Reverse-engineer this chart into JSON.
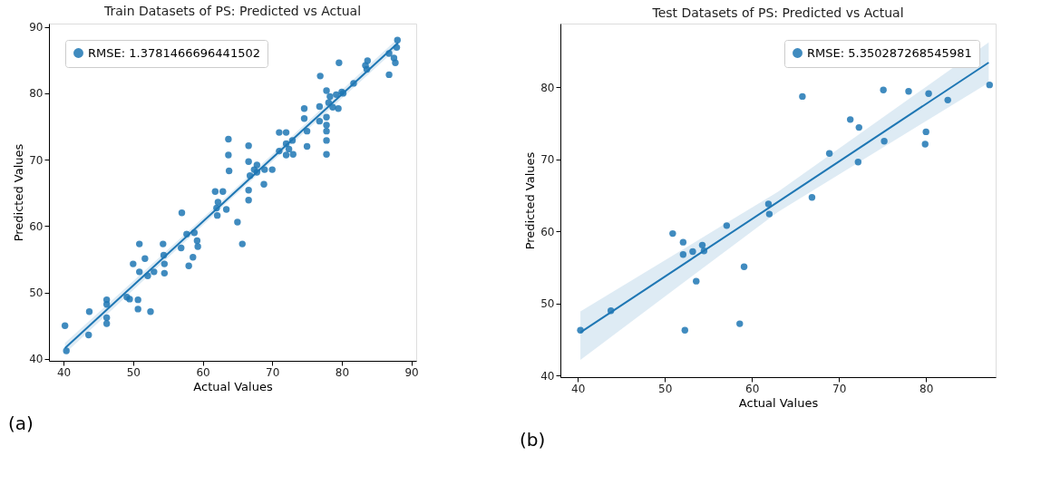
{
  "chart_data": [
    {
      "type": "scatter",
      "title": "Train Datasets of PS: Predicted vs Actual",
      "xlabel": "Actual Values",
      "ylabel": "Predicted Values",
      "xlim": [
        37.9,
        90.7
      ],
      "ylim": [
        39.7,
        90.5
      ],
      "xticks": [
        40,
        50,
        60,
        70,
        80,
        90
      ],
      "yticks": [
        40,
        50,
        60,
        70,
        80,
        90
      ],
      "grid": false,
      "legend": "top left",
      "marker": "circle",
      "annotations": [
        "(a)"
      ],
      "series": [
        {
          "name": "RMSE: 1.3781466696441502",
          "color": "#1f77b4",
          "x": [
            40.2,
            40.4,
            43.7,
            43.6,
            46.2,
            46.2,
            46.2,
            46.2,
            49.1,
            49.5,
            50.0,
            50.7,
            50.7,
            50.9,
            50.9,
            51.7,
            52.1,
            52.5,
            53.0,
            54.3,
            54.4,
            54.5,
            54.5,
            56.9,
            57.0,
            57.7,
            58.0,
            58.6,
            58.8,
            59.2,
            59.3,
            61.8,
            62.0,
            62.2,
            62.1,
            62.9,
            63.4,
            63.7,
            63.7,
            63.8,
            65.0,
            65.7,
            66.6,
            66.6,
            66.8,
            66.6,
            66.6,
            67.4,
            67.8,
            67.8,
            68.9,
            68.8,
            70.0,
            71.0,
            71.0,
            72.0,
            72.0,
            72.4,
            72.0,
            73.0,
            72.9,
            74.6,
            74.6,
            75.0,
            75.0,
            76.9,
            76.8,
            76.8,
            77.8,
            77.8,
            77.8,
            77.8,
            77.8,
            77.8,
            78.1,
            78.3,
            78.7,
            79.2,
            79.5,
            79.6,
            80.0,
            80.2,
            81.7,
            83.4,
            83.6,
            83.7,
            86.8,
            86.8,
            87.5,
            87.7,
            88.0,
            87.9
          ],
          "values": [
            45.0,
            41.2,
            47.1,
            43.6,
            48.9,
            48.2,
            46.2,
            45.3,
            49.3,
            49.0,
            54.3,
            48.9,
            47.5,
            57.3,
            53.1,
            55.1,
            52.5,
            47.1,
            53.1,
            57.3,
            55.6,
            54.3,
            52.9,
            56.7,
            62.0,
            58.8,
            54.0,
            55.3,
            59.0,
            57.8,
            56.9,
            65.2,
            62.7,
            63.6,
            61.6,
            65.2,
            62.5,
            73.1,
            70.7,
            68.3,
            60.6,
            57.3,
            72.1,
            69.7,
            67.6,
            65.4,
            63.9,
            68.5,
            69.2,
            68.1,
            68.5,
            66.3,
            68.5,
            74.1,
            71.3,
            74.1,
            72.4,
            71.6,
            70.7,
            70.8,
            72.9,
            77.7,
            76.2,
            74.3,
            72.0,
            82.6,
            78.0,
            75.8,
            80.4,
            76.4,
            75.2,
            74.3,
            72.9,
            70.8,
            78.6,
            79.5,
            77.9,
            79.8,
            77.7,
            84.6,
            80.2,
            80.0,
            81.5,
            84.2,
            83.6,
            84.9,
            86.0,
            82.8,
            85.3,
            84.6,
            88.0,
            86.9
          ]
        },
        {
          "type": "line",
          "marker": "none",
          "color": "#1f77b4",
          "x": [
            40.2,
            64.0,
            88.1
          ],
          "values": [
            41.6,
            64.5,
            87.6
          ],
          "lower": [
            40.8,
            64.0,
            86.9
          ],
          "upper": [
            42.4,
            65.0,
            88.3
          ]
        }
      ]
    },
    {
      "type": "scatter",
      "title": "Test Datasets of PS: Predicted vs Actual",
      "xlabel": "Actual Values",
      "ylabel": "Predicted Values",
      "xlim": [
        38.0,
        88.0
      ],
      "ylim": [
        39.8,
        88.8
      ],
      "xticks": [
        40,
        50,
        60,
        70,
        80
      ],
      "yticks": [
        40,
        50,
        60,
        70,
        80
      ],
      "grid": false,
      "legend": "top right",
      "marker": "circle",
      "annotations": [
        "(b)"
      ],
      "series": [
        {
          "name": "RMSE: 5.350287268545981",
          "color": "#1f77b4",
          "x": [
            40.3,
            43.8,
            50.9,
            52.1,
            52.1,
            52.3,
            53.2,
            53.6,
            54.3,
            54.5,
            57.1,
            58.6,
            59.1,
            61.9,
            62.0,
            65.8,
            66.9,
            68.9,
            71.3,
            72.3,
            72.2,
            75.1,
            75.2,
            78.0,
            80.0,
            79.9,
            80.3,
            82.5,
            87.3
          ],
          "values": [
            46.3,
            49.0,
            59.7,
            58.5,
            56.8,
            46.3,
            57.2,
            53.1,
            58.1,
            57.3,
            60.8,
            47.2,
            55.1,
            63.8,
            62.4,
            78.7,
            64.7,
            70.8,
            75.5,
            74.4,
            69.6,
            79.6,
            72.5,
            79.4,
            73.8,
            72.1,
            79.1,
            78.2,
            80.3
          ]
        },
        {
          "type": "line",
          "marker": "none",
          "color": "#1f77b4",
          "x": [
            40.3,
            63.0,
            87.2
          ],
          "values": [
            46.0,
            64.1,
            83.4
          ],
          "lower": [
            42.2,
            62.7,
            80.6
          ],
          "upper": [
            48.9,
            65.5,
            86.2
          ]
        }
      ]
    }
  ]
}
